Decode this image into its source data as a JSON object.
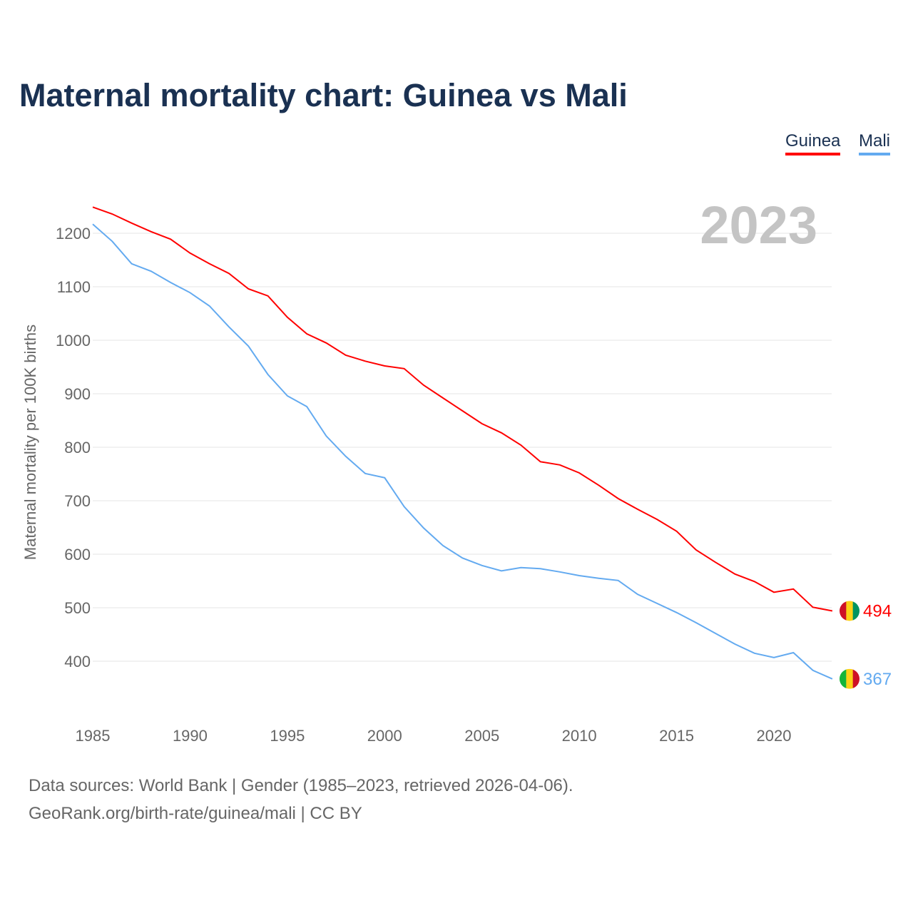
{
  "title": "Maternal mortality chart: Guinea vs Mali",
  "legend": [
    {
      "label": "Guinea",
      "color": "#ff0000"
    },
    {
      "label": "Mali",
      "color": "#63aaf0"
    }
  ],
  "footer": {
    "line1": "Data sources: World Bank | Gender (1985–2023, retrieved 2026-04-06).",
    "line2": "GeoRank.org/birth-rate/guinea/mali | CC BY"
  },
  "chart_data": {
    "type": "line",
    "title": "Maternal mortality chart: Guinea vs Mali",
    "year_label": "2023",
    "xlabel": "",
    "ylabel": "Maternal mortality per 100K births",
    "xlim": [
      1985,
      2023
    ],
    "ylim": [
      310,
      1260
    ],
    "x_ticks": [
      1985,
      1990,
      1995,
      2000,
      2005,
      2010,
      2015,
      2020
    ],
    "y_ticks": [
      400,
      500,
      600,
      700,
      800,
      900,
      1000,
      1100,
      1200
    ],
    "grid": true,
    "legend_position": "top-right",
    "x": [
      1985,
      1986,
      1987,
      1988,
      1989,
      1990,
      1991,
      1992,
      1993,
      1994,
      1995,
      1996,
      1997,
      1998,
      1999,
      2000,
      2001,
      2002,
      2003,
      2004,
      2005,
      2006,
      2007,
      2008,
      2009,
      2010,
      2011,
      2012,
      2013,
      2014,
      2015,
      2016,
      2017,
      2018,
      2019,
      2020,
      2021,
      2022,
      2023
    ],
    "series": [
      {
        "name": "Guinea",
        "color": "#ff0000",
        "flag": [
          "#ce1126",
          "#fcd116",
          "#009460"
        ],
        "end_label": "494",
        "values": [
          1249,
          1236,
          1219,
          1203,
          1189,
          1163,
          1143,
          1125,
          1096,
          1083,
          1043,
          1012,
          995,
          972,
          961,
          952,
          947,
          916,
          892,
          868,
          844,
          827,
          804,
          773,
          767,
          752,
          729,
          704,
          684,
          665,
          643,
          608,
          585,
          563,
          549,
          529,
          535,
          501,
          494
        ]
      },
      {
        "name": "Mali",
        "color": "#63aaf0",
        "flag": [
          "#14b53a",
          "#fcd116",
          "#ce1126"
        ],
        "end_label": "367",
        "values": [
          1217,
          1185,
          1143,
          1129,
          1108,
          1089,
          1064,
          1025,
          989,
          936,
          896,
          876,
          821,
          783,
          751,
          743,
          689,
          649,
          616,
          593,
          579,
          569,
          575,
          573,
          567,
          560,
          555,
          551,
          525,
          508,
          491,
          472,
          452,
          432,
          415,
          407,
          416,
          383,
          367
        ]
      }
    ]
  }
}
